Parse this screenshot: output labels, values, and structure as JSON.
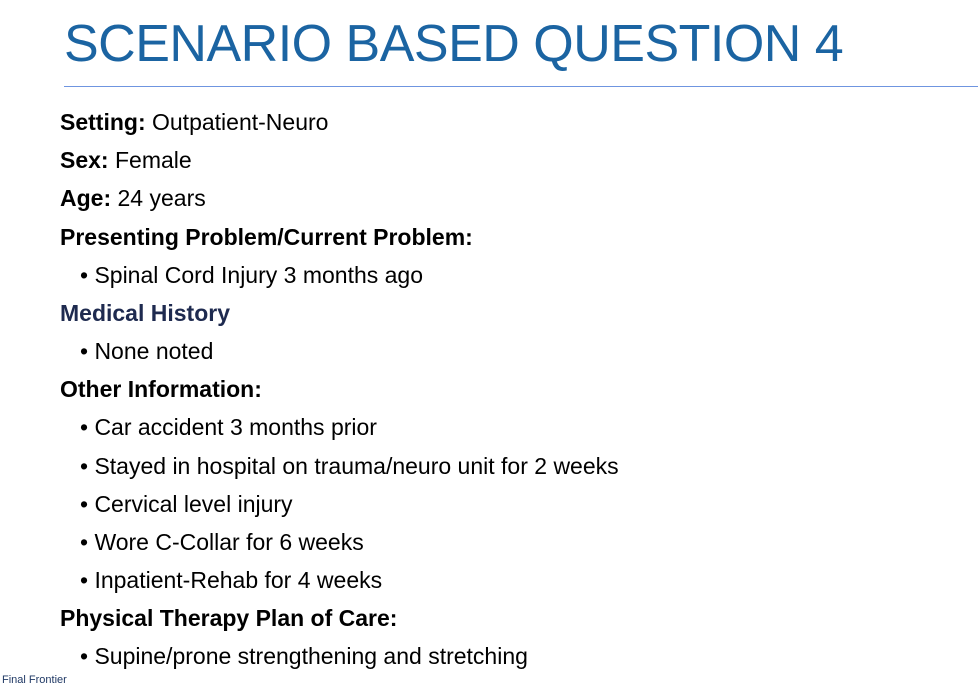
{
  "slide": {
    "title": "SCENARIO BASED QUESTION 4",
    "fields": [
      {
        "label": "Setting:",
        "value": " Outpatient-Neuro"
      },
      {
        "label": "Sex:",
        "value": " Female"
      },
      {
        "label": "Age:",
        "value": " 24 years"
      }
    ],
    "presenting_problem": {
      "heading": "Presenting Problem/Current Problem:",
      "bullets": [
        "• Spinal Cord Injury 3 months ago"
      ]
    },
    "medical_history": {
      "heading": "Medical History",
      "heading_color": "#1e2a4f",
      "bullets": [
        "• None noted"
      ]
    },
    "other_information": {
      "heading": "Other Information:",
      "bullets": [
        "• Car accident 3 months prior",
        "• Stayed in hospital on trauma/neuro unit for 2 weeks",
        "• Cervical level injury",
        "• Wore C-Collar for 6 weeks",
        "• Inpatient-Rehab for 4 weeks"
      ]
    },
    "plan_of_care": {
      "heading": "Physical Therapy Plan of Care:",
      "bullets": [
        "• Supine/prone strengthening and stretching"
      ]
    },
    "footer": "Final Frontier",
    "title_color": "#1b64a2"
  }
}
